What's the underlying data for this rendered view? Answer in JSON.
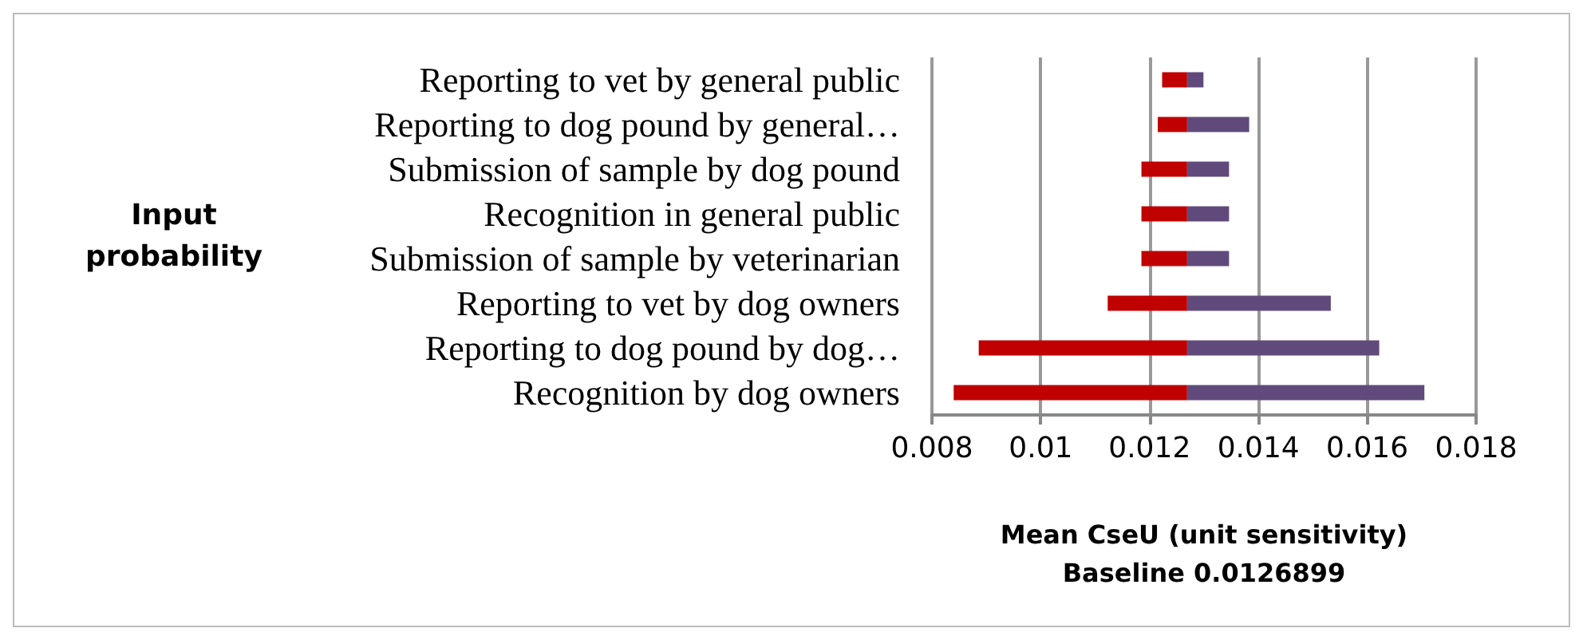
{
  "chart_data": {
    "type": "bar",
    "orientation": "horizontal",
    "ylabel": "Input probability",
    "xlabel": "Mean CseU (unit sensitivity)\nBaseline 0.0126899",
    "categories": [
      "Reporting to vet by general public",
      "Reporting to dog pound by general…",
      "Submission of sample by dog pound",
      "Recognition in general public",
      "Submission of sample by veterinarian",
      "Reporting to vet by dog owners",
      "Reporting to dog pound by dog…",
      "Recognition by dog owners"
    ],
    "series": [
      {
        "color": "#c00000",
        "base": [
          0.01223,
          0.01215,
          0.01185,
          0.01185,
          0.01185,
          0.01123,
          0.00886,
          0.0084
        ],
        "values": [
          0.00046,
          0.00054,
          0.00084,
          0.00084,
          0.00084,
          0.00146,
          0.00383,
          0.00429
        ]
      },
      {
        "color": "#604a7b",
        "base": [
          0.01269,
          0.01269,
          0.01269,
          0.01269,
          0.01269,
          0.01269,
          0.01269,
          0.01269
        ],
        "values": [
          0.0003,
          0.00114,
          0.00077,
          0.00077,
          0.00077,
          0.00264,
          0.00353,
          0.00436
        ]
      }
    ],
    "xlim": [
      0.008,
      0.018
    ],
    "xticks": [
      0.008,
      0.01,
      0.012,
      0.014,
      0.016,
      0.018
    ],
    "grid": "x"
  }
}
